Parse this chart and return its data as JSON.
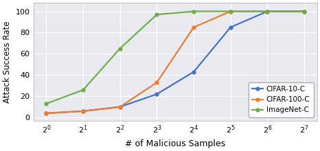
{
  "x_values": [
    0,
    1,
    2,
    3,
    4,
    5,
    6,
    7
  ],
  "x_tick_labels": [
    "$2^0$",
    "$2^1$",
    "$2^2$",
    "$2^3$",
    "$2^4$",
    "$2^5$",
    "$2^6$",
    "$2^7$"
  ],
  "cifar10_y": [
    4,
    6,
    10,
    22,
    43,
    85,
    100,
    100
  ],
  "cifar100_y": [
    4,
    6,
    10,
    33,
    85,
    100,
    100,
    100
  ],
  "imagenet_y": [
    13,
    26,
    65,
    97,
    100,
    100,
    100,
    100
  ],
  "cifar10_color": "#4472c4",
  "cifar100_color": "#ed7d31",
  "imagenet_color": "#70ad47",
  "xlabel": "# of Malicious Samples",
  "ylabel": "Attack Success Rate",
  "ylim": [
    -3,
    108
  ],
  "yticks": [
    0,
    20,
    40,
    60,
    80,
    100
  ],
  "legend_labels": [
    "CIFAR-10-C",
    "CIFAR-100-C",
    "ImageNet-C"
  ],
  "bg_color": "#e8eaf0",
  "marker": "o",
  "marker_size": 3.5,
  "linewidth": 1.6
}
